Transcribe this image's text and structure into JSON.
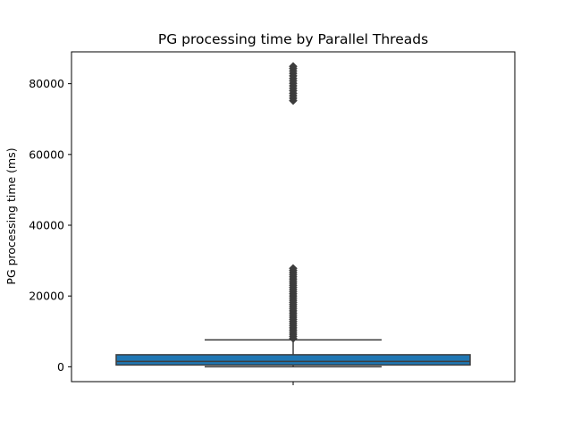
{
  "chart_data": {
    "type": "box",
    "title": "PG processing time by Parallel Threads",
    "xlabel": "",
    "ylabel": "PG processing time (ms)",
    "categories": [
      ""
    ],
    "ylim": [
      -4200,
      89000
    ],
    "yticks": [
      0,
      20000,
      40000,
      60000,
      80000
    ],
    "yticklabels": [
      "0",
      "20000",
      "40000",
      "60000",
      "80000"
    ],
    "grid": false,
    "box": {
      "whisker_low": 0,
      "q1": 500,
      "median": 1500,
      "q3": 3400,
      "whisker_high": 7600
    },
    "outliers": [
      8000,
      8600,
      9200,
      9800,
      10400,
      11000,
      11600,
      12200,
      12800,
      13400,
      14000,
      14600,
      15200,
      15800,
      16400,
      17000,
      17600,
      18200,
      18800,
      19400,
      20000,
      20600,
      21200,
      21800,
      22400,
      23000,
      23600,
      24200,
      24800,
      25400,
      26000,
      26600,
      27200,
      27800,
      75200,
      75900,
      76600,
      77300,
      78000,
      78700,
      79400,
      80100,
      80800,
      81500,
      82200,
      82900,
      83600,
      84300,
      84900
    ],
    "colors": {
      "box_fill": "#1f77b4",
      "line": "#3d3d3d",
      "outlier": "#3d3d3d"
    }
  }
}
